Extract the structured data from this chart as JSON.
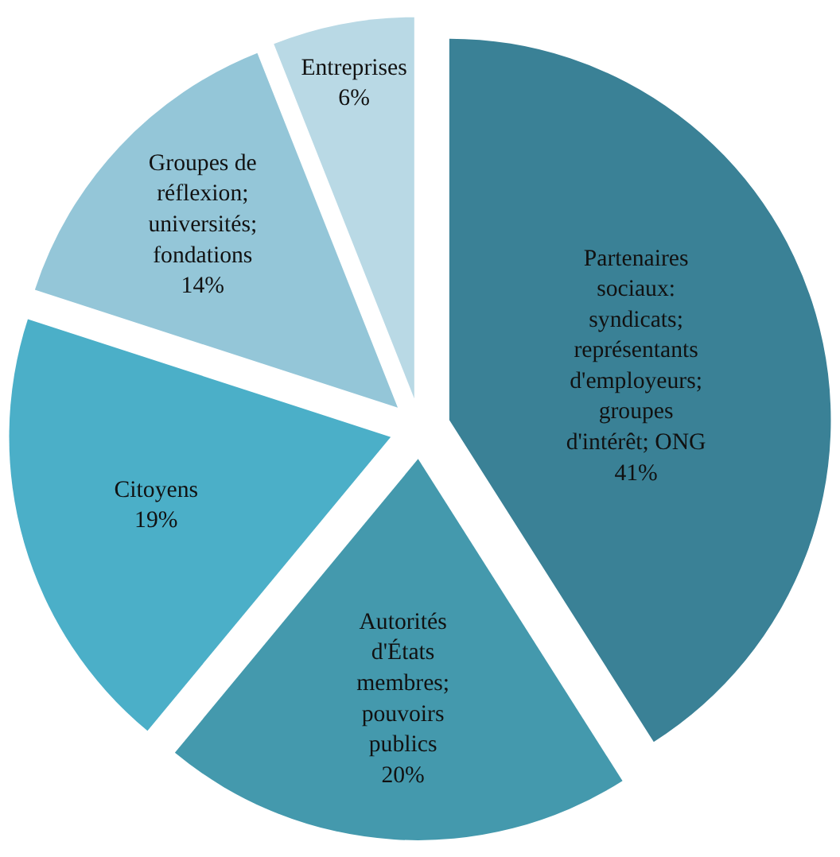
{
  "chart_data": {
    "type": "pie",
    "categories": [
      "Partenaires sociaux: syndicats; représentants d'employeurs; groupes d'intérêt; ONG",
      "Autorités d'États membres; pouvoirs publics",
      "Citoyens",
      "Groupes de réflexion; universités; fondations",
      "Entreprises"
    ],
    "values": [
      41,
      20,
      19,
      14,
      6
    ],
    "value_labels": [
      "41%",
      "20%",
      "19%",
      "14%",
      "6%"
    ],
    "colors": [
      "#3a8196",
      "#4499ad",
      "#4bafc8",
      "#94c6d8",
      "#b9d9e5"
    ],
    "legend": false
  }
}
